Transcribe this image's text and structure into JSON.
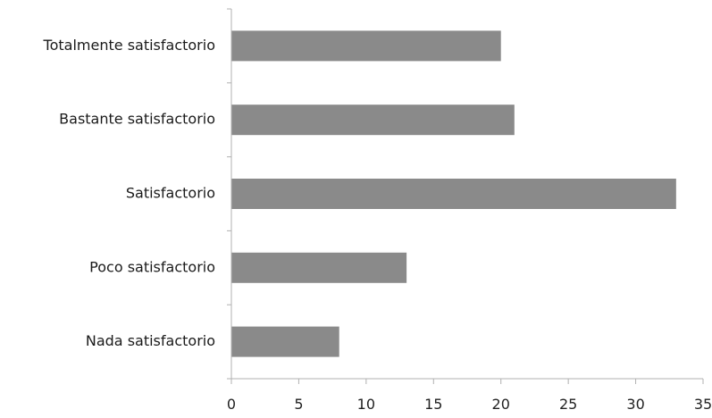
{
  "chart_data": {
    "type": "bar",
    "orientation": "horizontal",
    "categories": [
      "Totalmente satisfactorio",
      "Bastante satisfactorio",
      "Satisfactorio",
      "Poco satisfactorio",
      "Nada satisfactorio"
    ],
    "values": [
      20,
      21,
      33,
      13,
      8
    ],
    "title": "",
    "xlabel": "",
    "ylabel": "",
    "xlim": [
      0,
      35
    ],
    "xticks": [
      0,
      5,
      10,
      15,
      20,
      25,
      30,
      35
    ],
    "grid": false,
    "legend": "none",
    "bar_color": "#8a8a8a",
    "axis_color": "#b0b0b0"
  }
}
